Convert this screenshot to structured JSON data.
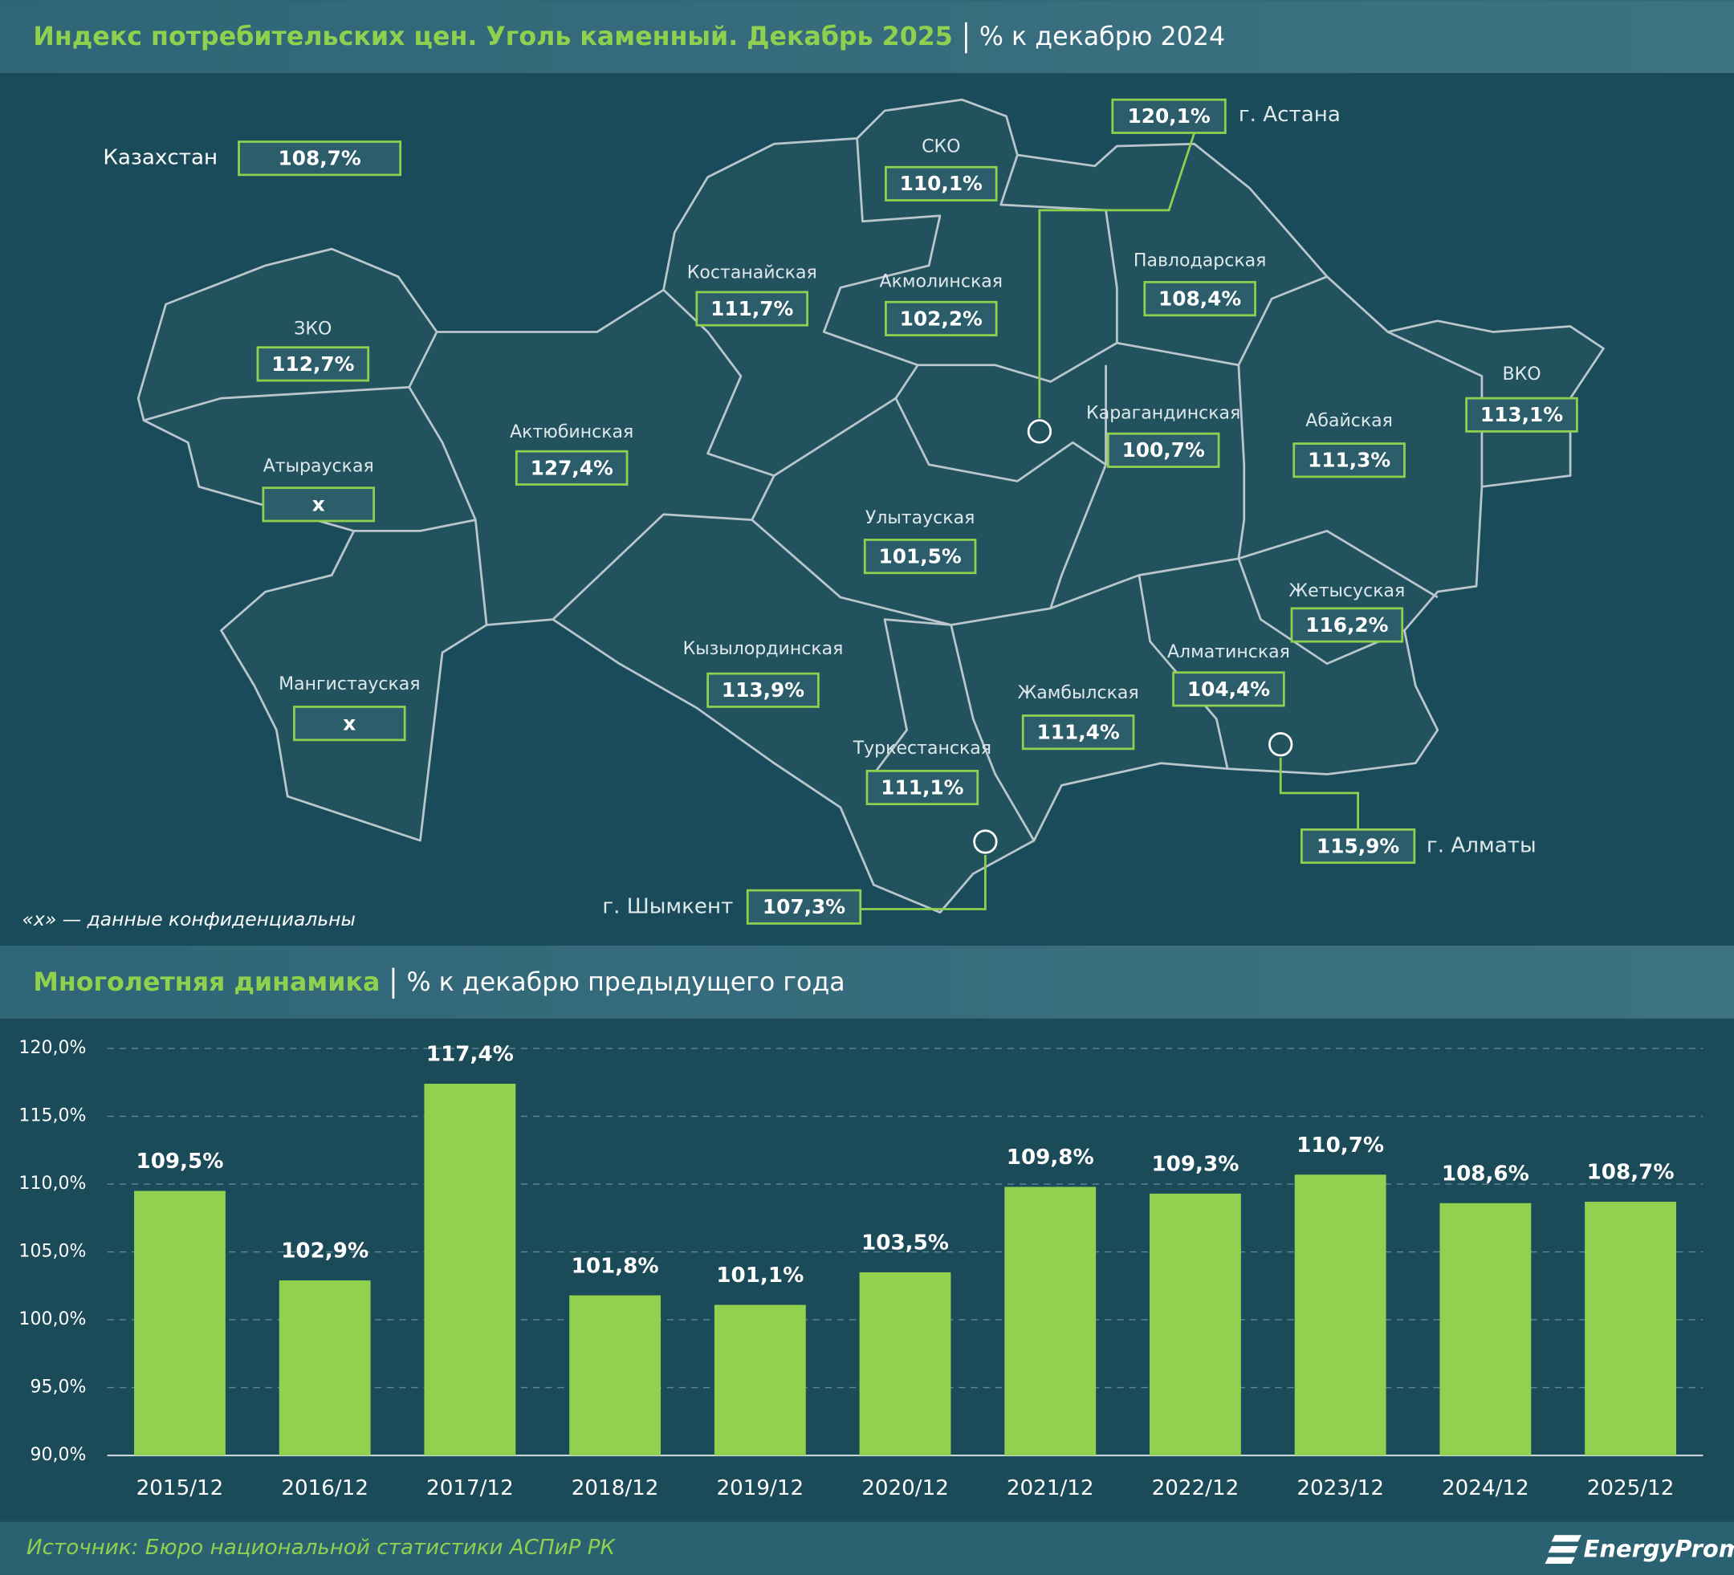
{
  "header": {
    "title": "Индекс потребительских цен. Уголь каменный. Декабрь 2025",
    "subtitle": "% к декабрю 2024"
  },
  "map": {
    "country": {
      "name": "Казахстан",
      "value": "108,7%"
    },
    "regions": [
      {
        "name": "СКО",
        "value": "110,1%"
      },
      {
        "name": "Костанайская",
        "value": "111,7%"
      },
      {
        "name": "Акмолинская",
        "value": "102,2%"
      },
      {
        "name": "Павлодарская",
        "value": "108,4%"
      },
      {
        "name": "ЗКО",
        "value": "112,7%"
      },
      {
        "name": "Атырауская",
        "value": "х"
      },
      {
        "name": "Актюбинская",
        "value": "127,4%"
      },
      {
        "name": "Карагандинская",
        "value": "100,7%"
      },
      {
        "name": "Абайская",
        "value": "111,3%"
      },
      {
        "name": "ВКО",
        "value": "113,1%"
      },
      {
        "name": "Улытауская",
        "value": "101,5%"
      },
      {
        "name": "Жетысуская",
        "value": "116,2%"
      },
      {
        "name": "Кызылординская",
        "value": "113,9%"
      },
      {
        "name": "Мангистауская",
        "value": "х"
      },
      {
        "name": "Алматинская",
        "value": "104,4%"
      },
      {
        "name": "Жамбылская",
        "value": "111,4%"
      },
      {
        "name": "Туркестанская",
        "value": "111,1%"
      }
    ],
    "cities": [
      {
        "name": "г. Астана",
        "value": "120,1%"
      },
      {
        "name": "г. Алматы",
        "value": "115,9%"
      },
      {
        "name": "г. Шымкент",
        "value": "107,3%"
      }
    ],
    "note": "«х» — данные конфиденциальны"
  },
  "chart_data": {
    "type": "bar",
    "title": "Многолетняя динамика",
    "subtitle": "% к декабрю предыдущего года",
    "categories": [
      "2015/12",
      "2016/12",
      "2017/12",
      "2018/12",
      "2019/12",
      "2020/12",
      "2021/12",
      "2022/12",
      "2023/12",
      "2024/12",
      "2025/12"
    ],
    "values": [
      109.5,
      102.9,
      117.4,
      101.8,
      101.1,
      103.5,
      109.8,
      109.3,
      110.7,
      108.6,
      108.7
    ],
    "value_labels": [
      "109,5%",
      "102,9%",
      "117,4%",
      "101,8%",
      "101,1%",
      "103,5%",
      "109,8%",
      "109,3%",
      "110,7%",
      "108,6%",
      "108,7%"
    ],
    "color": "#92d050",
    "ylim": [
      90,
      120
    ],
    "yticks": [
      {
        "value": 90,
        "label": "90,0%"
      },
      {
        "value": 95,
        "label": "95,0%"
      },
      {
        "value": 100,
        "label": "100,0%"
      },
      {
        "value": 105,
        "label": "105,0%"
      },
      {
        "value": 110,
        "label": "110,0%"
      },
      {
        "value": 115,
        "label": "115,0%"
      },
      {
        "value": 120,
        "label": "120,0%"
      }
    ],
    "grid": true
  },
  "footer": {
    "source": "Источник: Бюро национальной статистики АСПиР РК",
    "logo": "EnergyProm"
  }
}
